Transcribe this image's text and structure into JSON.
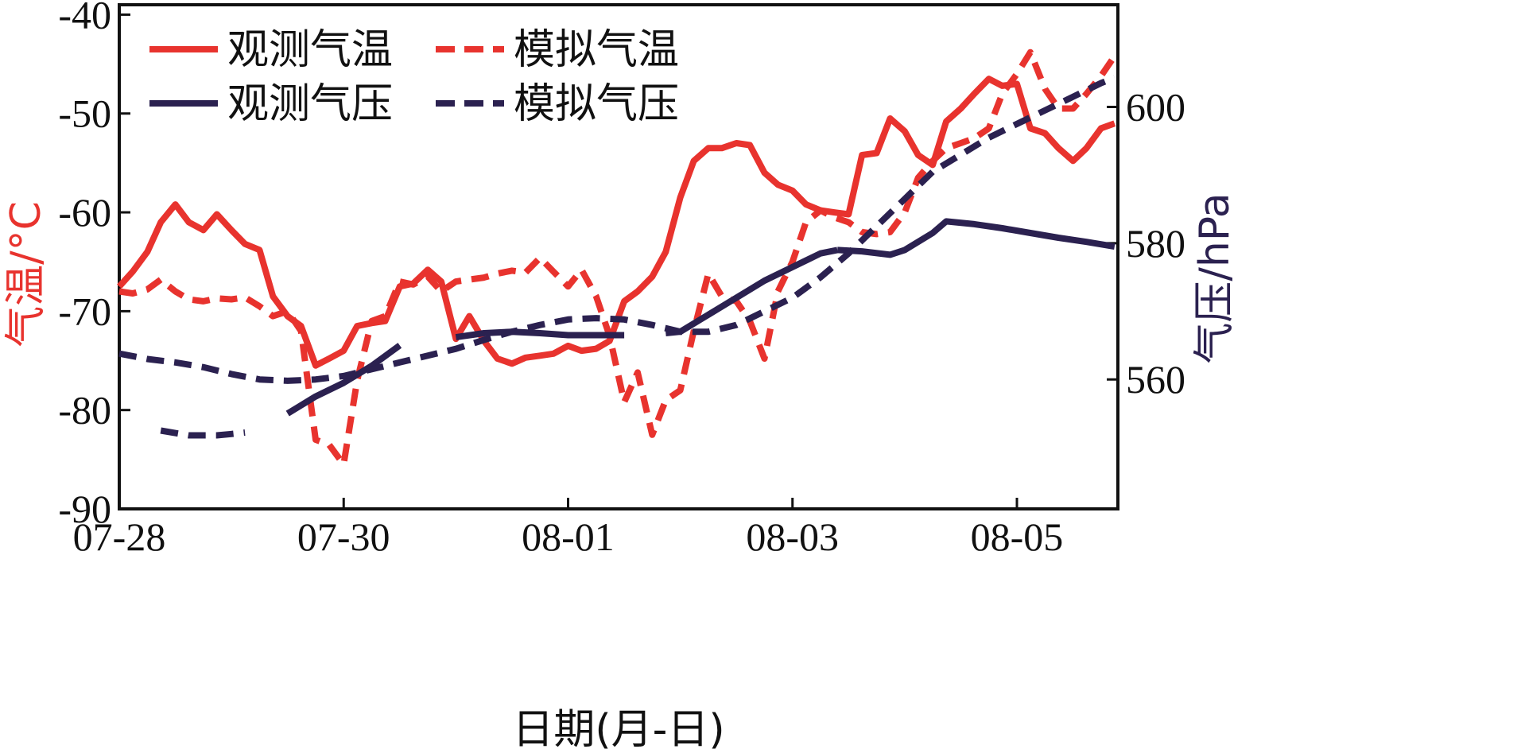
{
  "chart_data": {
    "type": "line",
    "title": "",
    "xlabel": "日期(月-日)",
    "ylabel_left": "气温/°C",
    "ylabel_right": "气压/hPa",
    "x_ticks": [
      "07-28",
      "07-30",
      "08-01",
      "08-03",
      "08-05"
    ],
    "x_range_days": [
      0,
      8.9
    ],
    "ylim_left": [
      -90,
      -39
    ],
    "yticks_left": [
      -40,
      -50,
      -60,
      -70,
      -80,
      -90
    ],
    "ylim_right": [
      541,
      615
    ],
    "yticks_right": [
      600,
      580,
      560
    ],
    "grid": false,
    "legend_position": "top-left",
    "colors": {
      "temperature": "#e8332e",
      "pressure": "#2b2150"
    },
    "series": [
      {
        "name": "观测气温",
        "axis": "left",
        "style": "solid",
        "color": "#e8332e",
        "points": [
          [
            0.0,
            -67.5
          ],
          [
            0.12,
            -66.0
          ],
          [
            0.25,
            -64.0
          ],
          [
            0.37,
            -61.0
          ],
          [
            0.5,
            -59.2
          ],
          [
            0.62,
            -61.0
          ],
          [
            0.75,
            -61.8
          ],
          [
            0.87,
            -60.2
          ],
          [
            1.0,
            -61.8
          ],
          [
            1.12,
            -63.2
          ],
          [
            1.25,
            -63.8
          ],
          [
            1.37,
            -68.5
          ],
          [
            1.5,
            -70.5
          ],
          [
            1.62,
            -71.5
          ],
          [
            1.75,
            -75.5
          ],
          [
            1.87,
            -74.8
          ],
          [
            2.0,
            -74.0
          ],
          [
            2.12,
            -71.5
          ],
          [
            2.25,
            -71.2
          ],
          [
            2.37,
            -71.0
          ],
          [
            2.5,
            -67.5
          ],
          [
            2.62,
            -67.2
          ],
          [
            2.75,
            -65.8
          ],
          [
            2.87,
            -67.0
          ],
          [
            3.0,
            -72.8
          ],
          [
            3.12,
            -70.5
          ],
          [
            3.25,
            -73.0
          ],
          [
            3.37,
            -74.8
          ],
          [
            3.5,
            -75.3
          ],
          [
            3.62,
            -74.7
          ],
          [
            3.75,
            -74.5
          ],
          [
            3.87,
            -74.3
          ],
          [
            4.0,
            -73.5
          ],
          [
            4.12,
            -74.0
          ],
          [
            4.25,
            -73.8
          ],
          [
            4.37,
            -73.0
          ],
          [
            4.5,
            -69.0
          ],
          [
            4.62,
            -68.0
          ],
          [
            4.75,
            -66.5
          ],
          [
            4.87,
            -64.0
          ],
          [
            5.0,
            -58.5
          ],
          [
            5.12,
            -54.8
          ],
          [
            5.25,
            -53.5
          ],
          [
            5.37,
            -53.5
          ],
          [
            5.5,
            -53.0
          ],
          [
            5.62,
            -53.2
          ],
          [
            5.75,
            -56.0
          ],
          [
            5.87,
            -57.2
          ],
          [
            6.0,
            -57.8
          ],
          [
            6.12,
            -59.2
          ],
          [
            6.25,
            -59.8
          ],
          [
            6.37,
            -60.0
          ],
          [
            6.5,
            -60.2
          ],
          [
            6.62,
            -54.2
          ],
          [
            6.75,
            -54.0
          ],
          [
            6.87,
            -50.5
          ],
          [
            7.0,
            -51.8
          ],
          [
            7.12,
            -54.2
          ],
          [
            7.25,
            -55.2
          ],
          [
            7.37,
            -50.8
          ],
          [
            7.5,
            -49.5
          ],
          [
            7.62,
            -48.0
          ],
          [
            7.75,
            -46.5
          ],
          [
            7.87,
            -47.2
          ],
          [
            8.0,
            -47.0
          ],
          [
            8.12,
            -51.5
          ],
          [
            8.25,
            -52.0
          ],
          [
            8.37,
            -53.5
          ],
          [
            8.5,
            -54.8
          ],
          [
            8.62,
            -53.5
          ],
          [
            8.75,
            -51.5
          ],
          [
            8.87,
            -51.0
          ]
        ]
      },
      {
        "name": "模拟气温",
        "axis": "left",
        "style": "dashed",
        "color": "#e8332e",
        "points": [
          [
            0.0,
            -68.0
          ],
          [
            0.12,
            -68.2
          ],
          [
            0.25,
            -67.8
          ],
          [
            0.37,
            -66.8
          ],
          [
            0.5,
            -68.0
          ],
          [
            0.62,
            -68.8
          ],
          [
            0.75,
            -69.0
          ],
          [
            0.87,
            -68.7
          ],
          [
            1.0,
            -68.8
          ],
          [
            1.12,
            -68.6
          ],
          [
            1.25,
            -69.5
          ],
          [
            1.37,
            -70.5
          ],
          [
            1.5,
            -70.0
          ],
          [
            1.62,
            -72.0
          ],
          [
            1.75,
            -83.0
          ],
          [
            1.87,
            -83.5
          ],
          [
            2.0,
            -85.5
          ],
          [
            2.12,
            -77.0
          ],
          [
            2.25,
            -71.0
          ],
          [
            2.37,
            -70.5
          ],
          [
            2.5,
            -67.0
          ],
          [
            2.62,
            -67.3
          ],
          [
            2.75,
            -66.5
          ],
          [
            2.87,
            -68.0
          ],
          [
            3.0,
            -67.0
          ],
          [
            3.12,
            -66.8
          ],
          [
            3.25,
            -66.6
          ],
          [
            3.37,
            -66.2
          ],
          [
            3.5,
            -65.9
          ],
          [
            3.62,
            -66.1
          ],
          [
            3.75,
            -64.6
          ],
          [
            3.87,
            -66.0
          ],
          [
            4.0,
            -67.5
          ],
          [
            4.12,
            -65.8
          ],
          [
            4.25,
            -68.5
          ],
          [
            4.37,
            -72.5
          ],
          [
            4.5,
            -79.2
          ],
          [
            4.62,
            -76.2
          ],
          [
            4.75,
            -82.5
          ],
          [
            4.87,
            -79.0
          ],
          [
            5.0,
            -78.0
          ],
          [
            5.12,
            -72.0
          ],
          [
            5.25,
            -66.2
          ],
          [
            5.37,
            -68.5
          ],
          [
            5.5,
            -69.0
          ],
          [
            5.62,
            -71.0
          ],
          [
            5.75,
            -74.8
          ],
          [
            5.87,
            -68.0
          ],
          [
            6.0,
            -65.0
          ],
          [
            6.12,
            -61.0
          ],
          [
            6.25,
            -59.8
          ],
          [
            6.37,
            -60.5
          ],
          [
            6.5,
            -61.0
          ],
          [
            6.62,
            -62.0
          ],
          [
            6.75,
            -62.2
          ],
          [
            6.87,
            -62.0
          ],
          [
            7.0,
            -60.0
          ],
          [
            7.12,
            -56.5
          ],
          [
            7.25,
            -54.8
          ],
          [
            7.37,
            -53.5
          ],
          [
            7.5,
            -53.0
          ],
          [
            7.62,
            -52.5
          ],
          [
            7.75,
            -51.5
          ],
          [
            7.87,
            -48.0
          ],
          [
            8.0,
            -46.0
          ],
          [
            8.12,
            -43.8
          ],
          [
            8.25,
            -47.5
          ],
          [
            8.37,
            -49.5
          ],
          [
            8.5,
            -49.5
          ],
          [
            8.62,
            -48.0
          ],
          [
            8.75,
            -46.2
          ],
          [
            8.87,
            -44.2
          ]
        ]
      },
      {
        "name": "观测气压",
        "axis": "right",
        "style": "solid",
        "color": "#2b2150",
        "segments": [
          [
            [
              1.5,
              555.0
            ],
            [
              1.75,
              557.5
            ],
            [
              2.0,
              559.5
            ],
            [
              2.25,
              562.0
            ],
            [
              2.5,
              565.0
            ]
          ],
          [
            [
              3.0,
              566.2
            ],
            [
              3.25,
              566.8
            ],
            [
              3.5,
              567.0
            ],
            [
              3.75,
              566.8
            ],
            [
              4.0,
              566.5
            ],
            [
              4.25,
              566.5
            ],
            [
              4.5,
              566.5
            ]
          ],
          [
            [
              4.87,
              566.8
            ],
            [
              5.0,
              567.0
            ],
            [
              5.25,
              569.5
            ],
            [
              5.5,
              572.0
            ],
            [
              5.75,
              574.5
            ],
            [
              6.0,
              576.5
            ],
            [
              6.25,
              578.5
            ],
            [
              6.4,
              579.0
            ]
          ],
          [
            [
              6.4,
              579.0
            ],
            [
              6.62,
              578.8
            ],
            [
              6.87,
              578.3
            ],
            [
              7.0,
              579.0
            ],
            [
              7.25,
              581.5
            ],
            [
              7.37,
              583.2
            ],
            [
              7.62,
              582.8
            ],
            [
              7.87,
              582.2
            ],
            [
              8.12,
              581.5
            ],
            [
              8.37,
              580.8
            ],
            [
              8.62,
              580.2
            ],
            [
              8.87,
              579.5
            ]
          ]
        ]
      },
      {
        "name": "模拟气压",
        "axis": "right",
        "style": "dashed",
        "color": "#2b2150",
        "segments": [
          [
            [
              0.0,
              563.8
            ],
            [
              0.25,
              563.0
            ],
            [
              0.5,
              562.5
            ],
            [
              0.75,
              561.8
            ],
            [
              1.0,
              560.8
            ],
            [
              1.25,
              560.0
            ],
            [
              1.5,
              559.8
            ],
            [
              1.75,
              560.0
            ],
            [
              2.0,
              560.5
            ],
            [
              2.25,
              561.5
            ],
            [
              2.5,
              562.5
            ],
            [
              2.75,
              563.5
            ],
            [
              3.0,
              564.5
            ],
            [
              3.25,
              565.8
            ],
            [
              3.5,
              567.0
            ],
            [
              3.75,
              568.0
            ],
            [
              4.0,
              568.8
            ],
            [
              4.25,
              569.0
            ],
            [
              4.5,
              568.8
            ],
            [
              4.75,
              568.0
            ],
            [
              5.0,
              567.0
            ],
            [
              5.25,
              567.0
            ],
            [
              5.5,
              568.0
            ],
            [
              5.75,
              570.0
            ],
            [
              6.0,
              572.0
            ],
            [
              6.25,
              575.0
            ],
            [
              6.5,
              578.5
            ],
            [
              6.75,
              582.5
            ],
            [
              7.0,
              586.5
            ],
            [
              7.25,
              590.5
            ],
            [
              7.5,
              593.0
            ],
            [
              7.75,
              595.5
            ],
            [
              8.0,
              597.5
            ],
            [
              8.25,
              599.5
            ],
            [
              8.5,
              601.5
            ],
            [
              8.75,
              603.5
            ],
            [
              8.87,
              604.3
            ]
          ],
          [
            [
              0.37,
              552.5
            ],
            [
              0.62,
              551.8
            ],
            [
              0.87,
              551.8
            ],
            [
              1.0,
              552.0
            ],
            [
              1.12,
              552.2
            ]
          ]
        ]
      }
    ]
  }
}
